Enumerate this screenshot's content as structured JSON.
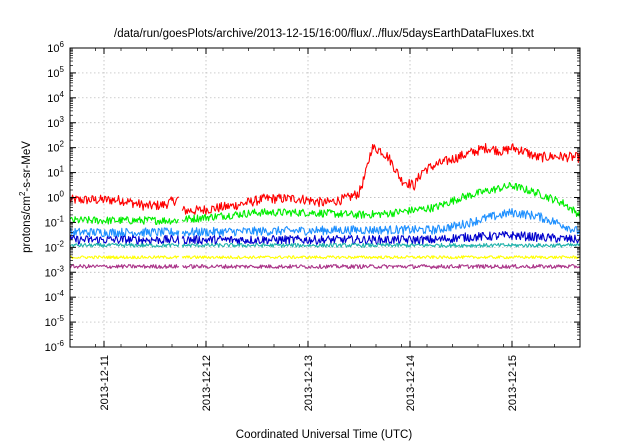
{
  "chart_data": {
    "type": "line",
    "title": "/data/run/goesPlots/archive/2013-12-15/16:00/flux/../flux/5daysEarthDataFluxes.txt",
    "xlabel": "Coordinated Universal Time (UTC)",
    "ylabel_parts": {
      "base": "protons/cm",
      "sup": "2",
      "rest": "-s-sr-MeV"
    },
    "yscale": "log",
    "ylim": [
      1e-06,
      1000000.0
    ],
    "yticks": [
      {
        "value": 1e-06,
        "base": "10",
        "exp": "-6"
      },
      {
        "value": 1e-05,
        "base": "10",
        "exp": "-5"
      },
      {
        "value": 0.0001,
        "base": "10",
        "exp": "-4"
      },
      {
        "value": 0.001,
        "base": "10",
        "exp": "-3"
      },
      {
        "value": 0.01,
        "base": "10",
        "exp": "-2"
      },
      {
        "value": 0.1,
        "base": "10",
        "exp": "-1"
      },
      {
        "value": 1,
        "base": "10",
        "exp": "0"
      },
      {
        "value": 10,
        "base": "10",
        "exp": "1"
      },
      {
        "value": 100,
        "base": "10",
        "exp": "2"
      },
      {
        "value": 1000,
        "base": "10",
        "exp": "3"
      },
      {
        "value": 10000,
        "base": "10",
        "exp": "4"
      },
      {
        "value": 100000,
        "base": "10",
        "exp": "5"
      },
      {
        "value": 1000000,
        "base": "10",
        "exp": "6"
      }
    ],
    "xlim": [
      "2013-12-10T16:00",
      "2013-12-15T16:00"
    ],
    "xticks": [
      {
        "value": "2013-12-11T00:00",
        "label": "2013-12-11"
      },
      {
        "value": "2013-12-12T00:00",
        "label": "2013-12-12"
      },
      {
        "value": "2013-12-13T00:00",
        "label": "2013-12-13"
      },
      {
        "value": "2013-12-14T00:00",
        "label": "2013-12-14"
      },
      {
        "value": "2013-12-15T00:00",
        "label": "2013-12-15"
      }
    ],
    "grid": true,
    "data_gap": [
      "2013-12-11T17:40",
      "2013-12-11T18:20"
    ],
    "series": [
      {
        "color": "#ff0000",
        "noise": 0.05,
        "x": [
          "2013-12-10T16:00",
          "2013-12-10T22:00",
          "2013-12-11T04:00",
          "2013-12-11T10:00",
          "2013-12-11T14:00",
          "2013-12-11T17:40",
          "2013-12-11T18:20",
          "2013-12-11T22:00",
          "2013-12-12T06:00",
          "2013-12-12T14:00",
          "2013-12-12T22:00",
          "2013-12-13T04:00",
          "2013-12-13T09:00",
          "2013-12-13T12:00",
          "2013-12-13T13:30",
          "2013-12-13T15:00",
          "2013-12-13T17:00",
          "2013-12-13T19:00",
          "2013-12-13T22:00",
          "2013-12-14T01:00",
          "2013-12-14T03:00",
          "2013-12-14T06:00",
          "2013-12-14T10:00",
          "2013-12-14T14:00",
          "2013-12-14T18:00",
          "2013-12-14T22:00",
          "2013-12-15T00:00",
          "2013-12-15T03:00",
          "2013-12-15T06:00",
          "2013-12-15T10:00",
          "2013-12-15T16:00"
        ],
        "y": [
          0.8,
          0.8,
          0.8,
          0.45,
          0.5,
          0.9,
          0.3,
          0.3,
          0.45,
          0.9,
          0.9,
          0.6,
          0.9,
          1.5,
          8,
          100,
          80,
          40,
          5,
          3,
          12,
          20,
          35,
          60,
          100,
          70,
          100,
          70,
          40,
          45,
          40
        ]
      },
      {
        "color": "#00ee00",
        "noise": 0.04,
        "x": [
          "2013-12-10T16:00",
          "2013-12-11T17:40",
          "2013-12-11T18:20",
          "2013-12-12T12:00",
          "2013-12-13T00:00",
          "2013-12-13T12:00",
          "2013-12-13T18:00",
          "2013-12-14T06:00",
          "2013-12-14T12:00",
          "2013-12-14T18:00",
          "2013-12-15T00:00",
          "2013-12-15T06:00",
          "2013-12-15T12:00",
          "2013-12-15T16:00"
        ],
        "y": [
          0.12,
          0.12,
          0.13,
          0.25,
          0.25,
          0.2,
          0.22,
          0.4,
          1.0,
          1.8,
          3.0,
          1.5,
          0.6,
          0.2
        ]
      },
      {
        "color": "#1e90ff",
        "noise": 0.045,
        "x": [
          "2013-12-10T16:00",
          "2013-12-11T17:40",
          "2013-12-11T18:20",
          "2013-12-13T12:00",
          "2013-12-14T06:00",
          "2013-12-14T12:00",
          "2013-12-14T18:00",
          "2013-12-15T00:00",
          "2013-12-15T06:00",
          "2013-12-15T12:00",
          "2013-12-15T16:00"
        ],
        "y": [
          0.04,
          0.04,
          0.04,
          0.05,
          0.05,
          0.08,
          0.15,
          0.25,
          0.18,
          0.08,
          0.04
        ]
      },
      {
        "color": "#0000cd",
        "noise": 0.045,
        "x": [
          "2013-12-10T16:00",
          "2013-12-11T17:40",
          "2013-12-11T18:20",
          "2013-12-14T06:00",
          "2013-12-14T12:00",
          "2013-12-15T00:00",
          "2013-12-15T12:00",
          "2013-12-15T16:00"
        ],
        "y": [
          0.02,
          0.02,
          0.02,
          0.02,
          0.025,
          0.03,
          0.022,
          0.02
        ]
      },
      {
        "color": "#20b2aa",
        "noise": 0.02,
        "x": [
          "2013-12-10T16:00",
          "2013-12-15T16:00"
        ],
        "y": [
          0.012,
          0.012
        ]
      },
      {
        "color": "#ffff00",
        "noise": 0.015,
        "x": [
          "2013-12-10T16:00",
          "2013-12-15T16:00"
        ],
        "y": [
          0.004,
          0.004
        ]
      },
      {
        "color": "#aa3388",
        "noise": 0.02,
        "x": [
          "2013-12-10T16:00",
          "2013-12-15T16:00"
        ],
        "y": [
          0.0017,
          0.0017
        ]
      }
    ]
  }
}
